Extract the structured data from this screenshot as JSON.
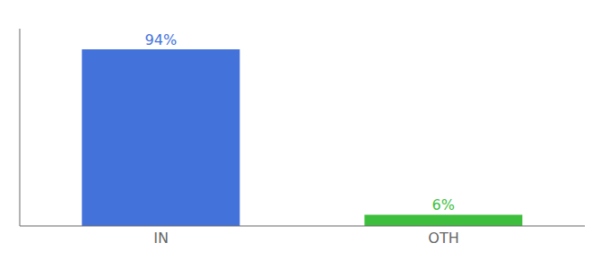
{
  "chart_data": {
    "type": "bar",
    "categories": [
      "IN",
      "OTH"
    ],
    "values": [
      94,
      6
    ],
    "value_labels": [
      "94%",
      "6%"
    ],
    "colors": [
      "#4472db",
      "#3dbf3d"
    ],
    "ylim": [
      0,
      105
    ],
    "data_labels": true,
    "tick_labels": "x"
  }
}
